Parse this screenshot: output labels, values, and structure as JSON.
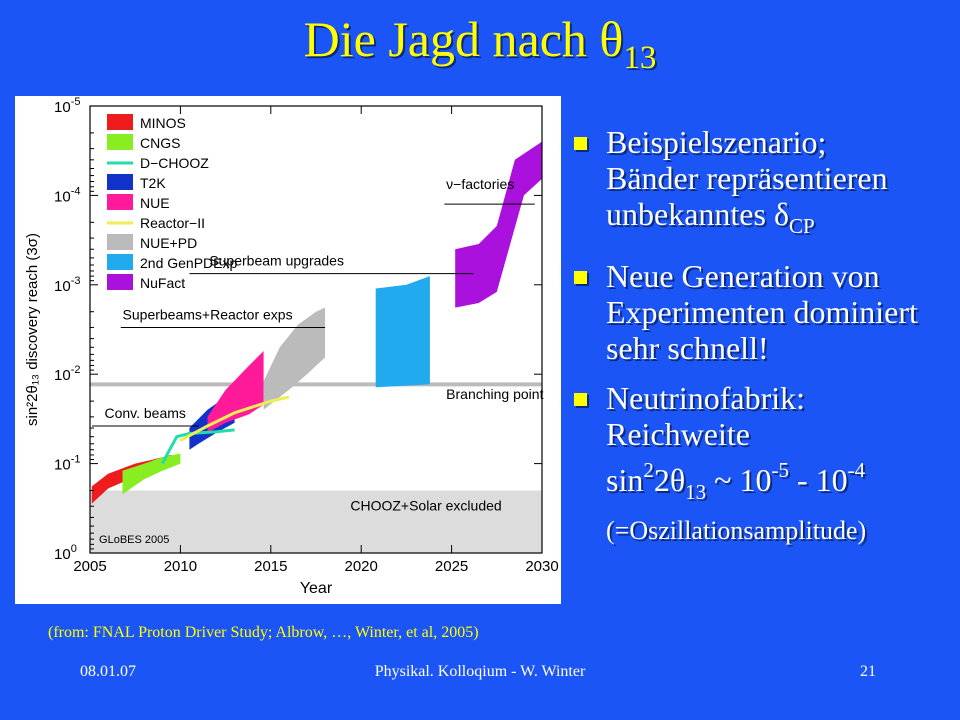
{
  "title": {
    "main": "Die Jagd nach θ",
    "sub": "13"
  },
  "bullets": [
    {
      "line1": "Beispielszenario;",
      "line2": "Bänder repräsentieren",
      "line3_pre": "unbekanntes δ",
      "line3_sub": "CP"
    },
    {
      "text": "Neue Generation von Experimenten dominiert sehr schnell!"
    },
    {
      "line1": "Neutrinofabrik:",
      "line2": "Reichweite",
      "f_a": "sin",
      "f_sup1": "2",
      "f_b": "2θ",
      "f_sub": "13",
      "f_c": " ~ 10",
      "f_sup2": "-5",
      "f_d": " - 10",
      "f_sup3": "-4",
      "line4": "(=Oszillationsamplitude)"
    }
  ],
  "caption": "(from: FNAL Proton Driver Study; Albrow, …, Winter, et al, 2005)",
  "footer": {
    "date": "08.01.07",
    "center": "Physikal. Kolloqium - W. Winter",
    "page": "21"
  },
  "chart_data": {
    "type": "area",
    "xlabel": "Year",
    "ylabel": "sin²2θ₁₃ discovery reach (3σ)",
    "xlim": [
      2005,
      2030
    ],
    "xticks": [
      "2005",
      "2010",
      "2015",
      "2020",
      "2025",
      "2030"
    ],
    "y_scale": "log, inverted",
    "yticks": [
      {
        "base": "10",
        "exp": "-5"
      },
      {
        "base": "10",
        "exp": "-4"
      },
      {
        "base": "10",
        "exp": "-3"
      },
      {
        "base": "10",
        "exp": "-2"
      },
      {
        "base": "10",
        "exp": "-1"
      },
      {
        "base": "10",
        "exp": "0"
      }
    ],
    "legend_position": "top-left",
    "legend": [
      {
        "name": "MINOS",
        "color": "#ee1c1c",
        "kind": "box"
      },
      {
        "name": "CNGS",
        "color": "#88ee22",
        "kind": "box"
      },
      {
        "name": "D−CHOOZ",
        "color": "#22ddaa",
        "kind": "line"
      },
      {
        "name": "T2K",
        "color": "#1133cc",
        "kind": "box"
      },
      {
        "name": "NUE",
        "color": "#ff1a9a",
        "kind": "box"
      },
      {
        "name": "Reactor−II",
        "color": "#eeee55",
        "kind": "line"
      },
      {
        "name": "NUE+PD",
        "color": "#bbbbbb",
        "kind": "box"
      },
      {
        "name": "2nd GenPDExp",
        "color": "#22aaee",
        "kind": "box"
      },
      {
        "name": "NuFact",
        "color": "#aa11dd",
        "kind": "box"
      }
    ],
    "annotations": {
      "nufact_label": "ν−factories",
      "superbeam": "Superbeam upgrades",
      "superreactor": "Superbeams+Reactor exps",
      "branching": "Branching point",
      "conv": "Conv. beams",
      "excluded": "CHOOZ+Solar excluded",
      "credit": "GLoBES 2005"
    },
    "branching_point": 0.013,
    "excluded_region": [
      0.2,
      1.0
    ],
    "bands": [
      {
        "name": "MINOS",
        "color": "#ee1c1c",
        "top": [
          [
            2005.1,
            0.18
          ],
          [
            2006,
            0.13
          ],
          [
            2007.5,
            0.1
          ],
          [
            2008.5,
            0.09
          ],
          [
            2009.5,
            0.08
          ]
        ],
        "bottom": [
          [
            2009.5,
            0.11
          ],
          [
            2008.5,
            0.12
          ],
          [
            2007.5,
            0.14
          ],
          [
            2006,
            0.19
          ],
          [
            2005.1,
            0.28
          ]
        ]
      },
      {
        "name": "CNGS",
        "color": "#88ee22",
        "top": [
          [
            2006.8,
            0.12
          ],
          [
            2008,
            0.1
          ],
          [
            2009,
            0.085
          ],
          [
            2010,
            0.077
          ]
        ],
        "bottom": [
          [
            2010,
            0.1
          ],
          [
            2009,
            0.12
          ],
          [
            2008,
            0.15
          ],
          [
            2006.8,
            0.22
          ]
        ]
      },
      {
        "name": "T2K",
        "color": "#1133cc",
        "top": [
          [
            2010.5,
            0.04
          ],
          [
            2011.5,
            0.025
          ],
          [
            2012.5,
            0.018
          ],
          [
            2013,
            0.015
          ]
        ],
        "bottom": [
          [
            2013,
            0.035
          ],
          [
            2012,
            0.045
          ],
          [
            2011,
            0.06
          ],
          [
            2010.5,
            0.07
          ]
        ]
      },
      {
        "name": "NUE",
        "color": "#ff1a9a",
        "top": [
          [
            2011.5,
            0.03
          ],
          [
            2012.5,
            0.015
          ],
          [
            2013.8,
            0.008
          ],
          [
            2014.6,
            0.0055
          ]
        ],
        "bottom": [
          [
            2014.6,
            0.022
          ],
          [
            2013.8,
            0.028
          ],
          [
            2012.5,
            0.035
          ],
          [
            2011.5,
            0.045
          ]
        ]
      },
      {
        "name": "NUE+PD",
        "color": "#bbbbbb",
        "top": [
          [
            2014.6,
            0.012
          ],
          [
            2015.5,
            0.005
          ],
          [
            2016.5,
            0.0028
          ],
          [
            2017.5,
            0.002
          ],
          [
            2018,
            0.0018
          ]
        ],
        "bottom": [
          [
            2018,
            0.0065
          ],
          [
            2017,
            0.01
          ],
          [
            2016,
            0.015
          ],
          [
            2014.6,
            0.025
          ]
        ]
      },
      {
        "name": "2nd GenPDExp",
        "color": "#22aaee",
        "top": [
          [
            2020.8,
            0.0011
          ],
          [
            2022.5,
            0.001
          ],
          [
            2023.8,
            0.0008
          ]
        ],
        "bottom": [
          [
            2023.8,
            0.013
          ],
          [
            2020.8,
            0.014
          ]
        ]
      },
      {
        "name": "NuFact",
        "color": "#aa11dd",
        "top": [
          [
            2025.2,
            0.0004
          ],
          [
            2026.5,
            0.00035
          ],
          [
            2027.5,
            0.00022
          ],
          [
            2028.5,
            4e-05
          ],
          [
            2030,
            2.5e-05
          ]
        ],
        "bottom": [
          [
            2030,
            6.5e-05
          ],
          [
            2029,
            0.0001
          ],
          [
            2027.5,
            0.0012
          ],
          [
            2026.5,
            0.0016
          ],
          [
            2025.2,
            0.0018
          ]
        ]
      }
    ],
    "lines": [
      {
        "name": "D−CHOOZ",
        "color": "#22ddaa",
        "points": [
          [
            2009,
            0.1
          ],
          [
            2009.4,
            0.07
          ],
          [
            2009.8,
            0.05
          ],
          [
            2010.5,
            0.046
          ],
          [
            2012,
            0.044
          ],
          [
            2013,
            0.042
          ]
        ]
      },
      {
        "name": "Reactor−II",
        "color": "#eeee55",
        "points": [
          [
            2010,
            0.055
          ],
          [
            2011.5,
            0.038
          ],
          [
            2013,
            0.027
          ],
          [
            2015,
            0.02
          ],
          [
            2016,
            0.018
          ]
        ]
      }
    ]
  }
}
